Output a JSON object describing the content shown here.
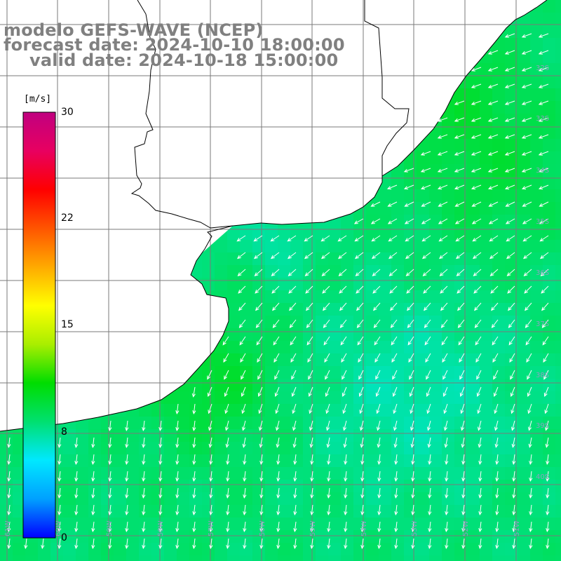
{
  "title": {
    "line1": "modelo GEFS-WAVE (NCEP)",
    "line2": "forecast date: 2024-10-10 18:00:00",
    "line3": "valid date: 2024-10-18 15:00:00"
  },
  "colorbar": {
    "unit": "[m/s]",
    "min": 0,
    "max": 30,
    "ticks": [
      "30",
      "22",
      "15",
      "8",
      "0"
    ],
    "tick_values": [
      30,
      22,
      15,
      8,
      0
    ],
    "colors": [
      "#0000ff",
      "#00a0ff",
      "#00e8ff",
      "#00e070",
      "#00dd00",
      "#aaee00",
      "#ffff00",
      "#ffaa00",
      "#ff5500",
      "#ff0000",
      "#e80060",
      "#c00080"
    ]
  },
  "map": {
    "lat_labels": [
      "32S",
      "33S",
      "34S",
      "35S",
      "36S",
      "37S",
      "38S",
      "39S",
      "40S"
    ],
    "lon_labels": [
      "61W",
      "60W",
      "59W",
      "58W",
      "57W",
      "56W",
      "55W",
      "54W",
      "53W",
      "52W",
      "51W"
    ],
    "grid_color": "#7a7a7a",
    "coast_color": "#000000",
    "land_color": "#ffffff",
    "arrow_color": "#ffffff",
    "prevailing_wind": "from north-east, turning from north offshore",
    "speed_range_ms": [
      6,
      11
    ]
  }
}
